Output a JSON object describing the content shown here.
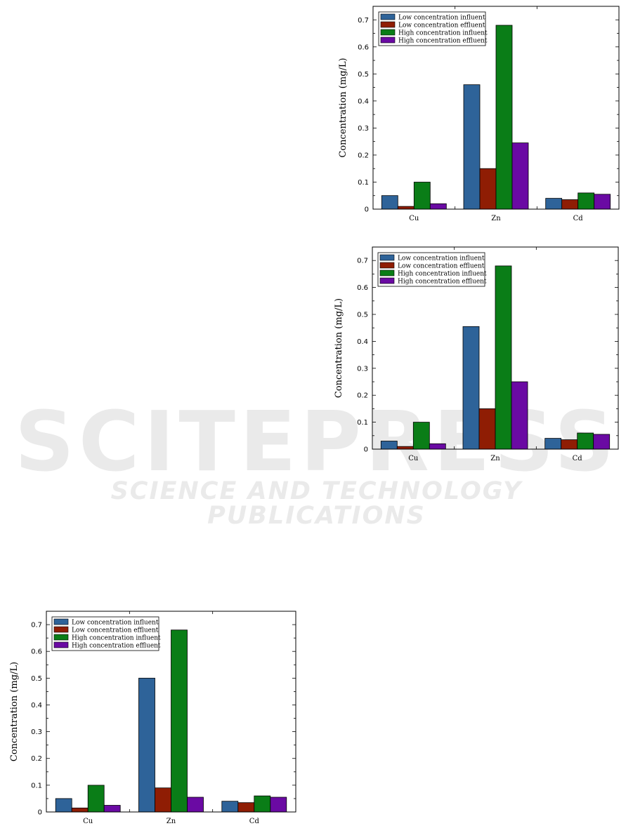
{
  "watermark": {
    "big": "SCITEPRESS",
    "small": "SCIENCE AND TECHNOLOGY PUBLICATIONS"
  },
  "chart_data": [
    {
      "type": "bar",
      "ylabel": "Concentration (mg/L)",
      "ylim": [
        0,
        0.75
      ],
      "yticks": [
        "0",
        "0.1",
        "0.2",
        "0.3",
        "0.4",
        "0.5",
        "0.6",
        "0.7"
      ],
      "categories": [
        "Cu",
        "Zn",
        "Cd"
      ],
      "legend_position": "top-left",
      "series": [
        {
          "name": "Low concentration influent",
          "color": "#2e6399",
          "values": [
            0.05,
            0.46,
            0.04
          ]
        },
        {
          "name": "Low concentration effluent",
          "color": "#8f1d04",
          "values": [
            0.01,
            0.15,
            0.035
          ]
        },
        {
          "name": "High concentration influent",
          "color": "#0a7d17",
          "values": [
            0.1,
            0.68,
            0.06
          ]
        },
        {
          "name": "High concentration effluent",
          "color": "#6a0aa3",
          "values": [
            0.02,
            0.245,
            0.055
          ]
        }
      ]
    },
    {
      "type": "bar",
      "ylabel": "Concentration (mg/L)",
      "ylim": [
        0,
        0.75
      ],
      "yticks": [
        "0",
        "0.1",
        "0.2",
        "0.3",
        "0.4",
        "0.5",
        "0.6",
        "0.7"
      ],
      "categories": [
        "Cu",
        "Zn",
        "Cd"
      ],
      "legend_position": "top-left",
      "series": [
        {
          "name": "Low concentration influent",
          "color": "#2e6399",
          "values": [
            0.03,
            0.455,
            0.04
          ]
        },
        {
          "name": "Low concentration effluent",
          "color": "#8f1d04",
          "values": [
            0.01,
            0.15,
            0.035
          ]
        },
        {
          "name": "High concentration influent",
          "color": "#0a7d17",
          "values": [
            0.1,
            0.68,
            0.06
          ]
        },
        {
          "name": "High concentration effluent",
          "color": "#6a0aa3",
          "values": [
            0.02,
            0.25,
            0.055
          ]
        }
      ]
    },
    {
      "type": "bar",
      "ylabel": "Concentration (mg/L)",
      "ylim": [
        0,
        0.75
      ],
      "yticks": [
        "0",
        "0.1",
        "0.2",
        "0.3",
        "0.4",
        "0.5",
        "0.6",
        "0.7"
      ],
      "categories": [
        "Cu",
        "Zn",
        "Cd"
      ],
      "legend_position": "top-left",
      "series": [
        {
          "name": "Low concentration influent",
          "color": "#2e6399",
          "values": [
            0.05,
            0.5,
            0.04
          ]
        },
        {
          "name": "Low concentration effluent",
          "color": "#8f1d04",
          "values": [
            0.015,
            0.09,
            0.035
          ]
        },
        {
          "name": "High concentration influent",
          "color": "#0a7d17",
          "values": [
            0.1,
            0.68,
            0.06
          ]
        },
        {
          "name": "High concentration effluent",
          "color": "#6a0aa3",
          "values": [
            0.025,
            0.055,
            0.055
          ]
        }
      ]
    }
  ]
}
